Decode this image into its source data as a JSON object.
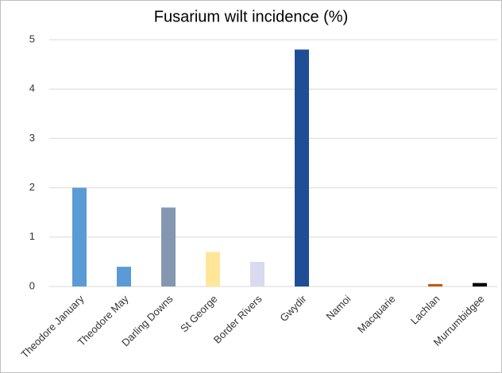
{
  "chart_data": {
    "type": "bar",
    "title": "Fusarium wilt incidence (%)",
    "categories": [
      "Theodore January",
      "Theodore May",
      "Darling Downs",
      "St George",
      "Border Rivers",
      "Gwydir",
      "Namoi",
      "Macquarie",
      "Lachlan",
      "Murrumbidgee"
    ],
    "values": [
      2,
      0.4,
      1.6,
      0.7,
      0.5,
      4.8,
      0,
      0,
      0.05,
      0.07
    ],
    "colors": [
      "#5b9bd5",
      "#5b9bd5",
      "#8497b0",
      "#ffe699",
      "#d9d9ef",
      "#1f4e96",
      "#a5a5a5",
      "#a5a5a5",
      "#c55a11",
      "#000000"
    ],
    "ylim": [
      0,
      5
    ],
    "yticks": [
      0,
      1,
      2,
      3,
      4,
      5
    ],
    "grid": true
  }
}
